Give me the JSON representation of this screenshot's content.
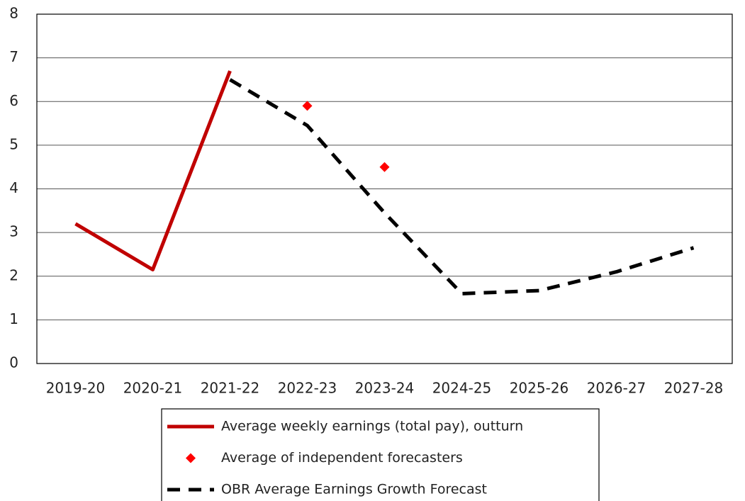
{
  "chart_data": {
    "type": "line",
    "categories": [
      "2019-20",
      "2020-21",
      "2021-22",
      "2022-23",
      "2023-24",
      "2024-25",
      "2025-26",
      "2026-27",
      "2027-28"
    ],
    "series": [
      {
        "name": "Average weekly earnings (total pay), outturn",
        "color": "#c00000",
        "style": "solid",
        "values": [
          3.2,
          2.15,
          6.7,
          null,
          null,
          null,
          null,
          null,
          null
        ]
      },
      {
        "name": "Average of independent forecasters",
        "color": "#ff0000",
        "style": "marker",
        "values": [
          null,
          null,
          null,
          5.9,
          4.5,
          null,
          null,
          null,
          null
        ]
      },
      {
        "name": "OBR Average Earnings Growth Forecast",
        "color": "#000000",
        "style": "dashed",
        "values": [
          null,
          null,
          6.5,
          5.45,
          3.45,
          1.6,
          1.67,
          2.1,
          2.65
        ]
      }
    ],
    "ylim": [
      0,
      8
    ],
    "yticks": [
      0,
      1,
      2,
      3,
      4,
      5,
      6,
      7,
      8
    ],
    "grid": true,
    "legend": "bottom"
  }
}
